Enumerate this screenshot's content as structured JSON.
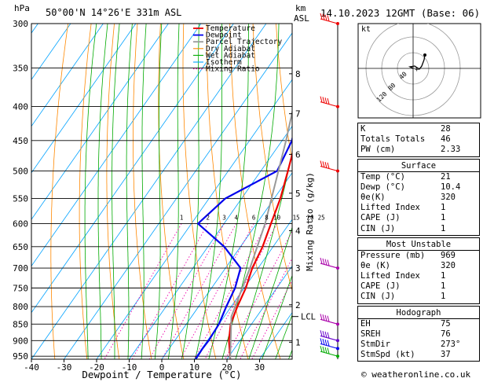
{
  "header": {
    "hpa_label": "hPa",
    "location": "50°00'N  14°26'E  331m  ASL",
    "km_label": "km",
    "asl_label": "ASL",
    "datetime": "14.10.2023  12GMT  (Base: 06)"
  },
  "chart_data": {
    "type": "line",
    "title": "",
    "xlabel": "Dewpoint / Temperature (°C)",
    "ylabel": "Mixing Ratio (g/kg)",
    "x_ticks": [
      -40,
      -30,
      -20,
      -10,
      0,
      10,
      20,
      30
    ],
    "xlim": [
      -40,
      40
    ],
    "pressure_levels": [
      300,
      350,
      400,
      450,
      500,
      550,
      600,
      650,
      700,
      750,
      800,
      850,
      900,
      950
    ],
    "ylim": [
      300,
      960
    ],
    "y_scale": "log",
    "km_ticks": [
      {
        "label": "1",
        "p": 905
      },
      {
        "label": "2",
        "p": 795
      },
      {
        "label": "3",
        "p": 700
      },
      {
        "label": "4",
        "p": 615
      },
      {
        "label": "5",
        "p": 540
      },
      {
        "label": "6",
        "p": 472
      },
      {
        "label": "7",
        "p": 410
      },
      {
        "label": "8",
        "p": 357
      }
    ],
    "lcl": {
      "label": "LCL",
      "p": 828
    },
    "mixing_ratio_labels": [
      "1",
      "2",
      "3",
      "4",
      "6",
      "8",
      "10",
      "15",
      "20",
      "25"
    ],
    "mixing_ratio_values": [
      1,
      2,
      3,
      4,
      6,
      8,
      10,
      15,
      20,
      25
    ],
    "legend_position": "top-right",
    "series": [
      {
        "name": "Temperature",
        "color": "#ee0000",
        "points": [
          [
            960,
            21
          ],
          [
            925,
            18.5
          ],
          [
            900,
            16.6
          ],
          [
            850,
            13.6
          ],
          [
            800,
            11.9
          ],
          [
            750,
            10.5
          ],
          [
            700,
            8.2
          ],
          [
            650,
            6.8
          ],
          [
            600,
            4.4
          ],
          [
            550,
            1.9
          ],
          [
            500,
            -1.7
          ],
          [
            450,
            -5.8
          ],
          [
            400,
            -11.2
          ],
          [
            350,
            -17.6
          ],
          [
            300,
            -25.8
          ]
        ]
      },
      {
        "name": "Dewpoint",
        "color": "#0000ee",
        "points": [
          [
            960,
            10.4
          ],
          [
            925,
            10.2
          ],
          [
            900,
            10.4
          ],
          [
            850,
            10.0
          ],
          [
            800,
            8.5
          ],
          [
            750,
            7.2
          ],
          [
            700,
            4.6
          ],
          [
            650,
            -5
          ],
          [
            600,
            -18
          ],
          [
            550,
            -15
          ],
          [
            500,
            -5
          ],
          [
            450,
            -7
          ],
          [
            400,
            -12
          ],
          [
            350,
            -18.5
          ],
          [
            300,
            -26
          ]
        ]
      },
      {
        "name": "Parcel Trajectory",
        "color": "#999999",
        "points": [
          [
            960,
            21
          ],
          [
            828,
            12.2
          ],
          [
            700,
            7.5
          ],
          [
            600,
            2.6
          ],
          [
            500,
            -4.6
          ],
          [
            450,
            -8.8
          ],
          [
            400,
            -13.8
          ],
          [
            350,
            -20.3
          ],
          [
            300,
            -28.6
          ]
        ]
      },
      {
        "name": "Dry Adiabat",
        "color": "#ff8800"
      },
      {
        "name": "Wet Adiabat",
        "color": "#00aa00"
      },
      {
        "name": "Isotherm",
        "color": "#00a2ff"
      },
      {
        "name": "Mixing Ratio",
        "color": "#ee00aa"
      }
    ],
    "wind_barbs": [
      {
        "p": 300,
        "color": "#ee0000"
      },
      {
        "p": 400,
        "color": "#ee0000"
      },
      {
        "p": 500,
        "color": "#ee0000"
      },
      {
        "p": 700,
        "color": "#aa00aa"
      },
      {
        "p": 850,
        "color": "#aa00aa"
      },
      {
        "p": 900,
        "color": "#6600cc"
      },
      {
        "p": 925,
        "color": "#0000ee"
      },
      {
        "p": 950,
        "color": "#00aa00"
      }
    ]
  },
  "hodograph": {
    "label": "kt",
    "ring_labels": [
      "40",
      "80",
      "120"
    ]
  },
  "stats": {
    "indices": [
      {
        "k": "K",
        "v": "28"
      },
      {
        "k": "Totals Totals",
        "v": "46"
      },
      {
        "k": "PW (cm)",
        "v": "2.33"
      }
    ],
    "surface_title": "Surface",
    "surface": [
      {
        "k": "Temp (°C)",
        "v": "21"
      },
      {
        "k": "Dewp (°C)",
        "v": "10.4"
      },
      {
        "k": "θe(K)",
        "v": "320"
      },
      {
        "k": "Lifted Index",
        "v": "1"
      },
      {
        "k": "CAPE (J)",
        "v": "1"
      },
      {
        "k": "CIN (J)",
        "v": "1"
      }
    ],
    "unstable_title": "Most Unstable",
    "unstable": [
      {
        "k": "Pressure (mb)",
        "v": "969"
      },
      {
        "k": "θe (K)",
        "v": "320"
      },
      {
        "k": "Lifted Index",
        "v": "1"
      },
      {
        "k": "CAPE (J)",
        "v": "1"
      },
      {
        "k": "CIN (J)",
        "v": "1"
      }
    ],
    "hodo_title": "Hodograph",
    "hodo": [
      {
        "k": "EH",
        "v": "75"
      },
      {
        "k": "SREH",
        "v": "76"
      },
      {
        "k": "StmDir",
        "v": "273°"
      },
      {
        "k": "StmSpd (kt)",
        "v": "37"
      }
    ]
  },
  "credit": "© weatheronline.co.uk"
}
